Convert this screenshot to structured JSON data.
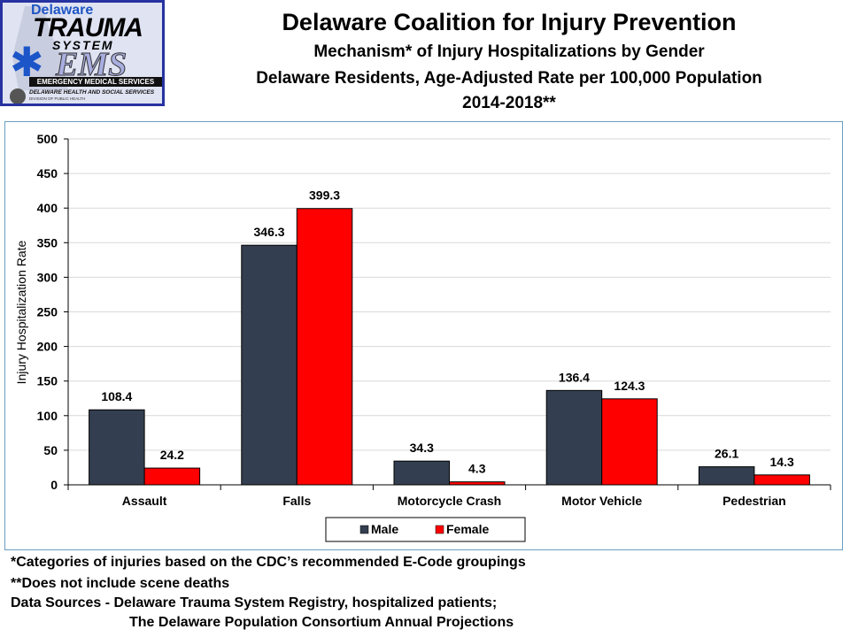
{
  "logo": {
    "line1": "Delaware",
    "line2": "TRAUMA",
    "line3": "SYSTEM",
    "line4": "EMS",
    "line5": "EMERGENCY MEDICAL SERVICES",
    "line6": "DELAWARE HEALTH AND SOCIAL SERVICES",
    "line7": "DIVISION OF PUBLIC HEALTH",
    "icon": "star-of-life-icon"
  },
  "header": {
    "title": "Delaware Coalition for Injury Prevention",
    "subtitle1": "Mechanism* of Injury Hospitalizations by Gender",
    "subtitle2": "Delaware Residents, Age-Adjusted Rate per 100,000 Population",
    "subtitle3": "2014-2018**"
  },
  "chart_data": {
    "type": "bar",
    "title": "Mechanism* of Injury Hospitalizations by Gender",
    "xlabel": "",
    "ylabel": "Injury Hospitalization Rate",
    "ylim": [
      0,
      500
    ],
    "yticks": [
      0,
      50,
      100,
      150,
      200,
      250,
      300,
      350,
      400,
      450,
      500
    ],
    "grid": true,
    "legend_position": "bottom",
    "categories": [
      "Assault",
      "Falls",
      "Motorcycle Crash",
      "Motor Vehicle",
      "Pedestrian"
    ],
    "series": [
      {
        "name": "Male",
        "color": "#333f50",
        "values": [
          108.4,
          346.3,
          34.3,
          136.4,
          26.1
        ]
      },
      {
        "name": "Female",
        "color": "#ff0000",
        "values": [
          24.2,
          399.3,
          4.3,
          124.3,
          14.3
        ]
      }
    ]
  },
  "footnotes": {
    "note1": "*Categories of injuries based on the CDC’s recommended E-Code groupings",
    "note2": "**Does not include scene deaths",
    "note3": "Data Sources - Delaware Trauma System Registry, hospitalized patients;",
    "note4": "The Delaware Population Consortium Annual Projections"
  }
}
